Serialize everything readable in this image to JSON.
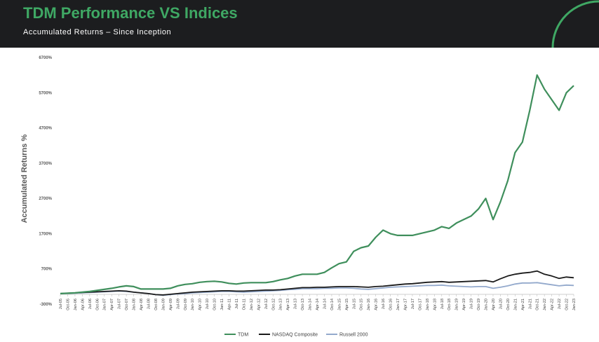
{
  "header": {
    "title": "TDM Performance VS Indices",
    "subtitle": "Accumulated Returns – Since Inception",
    "title_color": "#3fa864",
    "background": "#1c1d1f"
  },
  "chart_data": {
    "type": "line",
    "title": "TDM Performance VS Indices",
    "subtitle": "Accumulated Returns – Since Inception",
    "xlabel": "",
    "ylabel": "Accumulated Returns %",
    "ylim": [
      -300,
      6700
    ],
    "yticks": [
      -300,
      700,
      1700,
      2700,
      3700,
      4700,
      5700,
      6700
    ],
    "ytick_labels": [
      "-300%",
      "700%",
      "1700%",
      "2700%",
      "3700%",
      "4700%",
      "5700%",
      "6700%"
    ],
    "grid": false,
    "legend_position": "bottom",
    "categories": [
      "Jul-05",
      "Oct-05",
      "Jan-06",
      "Apr-06",
      "Jul-06",
      "Oct-06",
      "Jan-07",
      "Apr-07",
      "Jul-07",
      "Oct-07",
      "Jan-08",
      "Apr-08",
      "Jul-08",
      "Oct-08",
      "Jan-09",
      "Apr-09",
      "Jul-09",
      "Oct-09",
      "Jan-10",
      "Apr-10",
      "Jul-10",
      "Oct-10",
      "Jan-11",
      "Apr-11",
      "Jul-11",
      "Oct-11",
      "Jan-12",
      "Apr-12",
      "Jul-12",
      "Oct-12",
      "Jan-13",
      "Apr-13",
      "Jul-13",
      "Oct-13",
      "Jan-14",
      "Apr-14",
      "Jul-14",
      "Oct-14",
      "Jan-15",
      "Apr-15",
      "Jul-15",
      "Oct-15",
      "Jan-16",
      "Apr-16",
      "Jul-16",
      "Oct-16",
      "Jan-17",
      "Apr-17",
      "Jul-17",
      "Oct-17",
      "Jan-18",
      "Apr-18",
      "Jul-18",
      "Oct-18",
      "Jan-19",
      "Apr-19",
      "Jul-19",
      "Oct-19",
      "Jan-20",
      "Apr-20",
      "Jul-20",
      "Oct-20",
      "Jan-21",
      "Apr-21",
      "Jul-21",
      "Oct-21",
      "Jan-22",
      "Apr-22",
      "Jul-22",
      "Oct-22",
      "Jan-23"
    ],
    "series": [
      {
        "name": "TDM",
        "color": "#3f8f5c",
        "values": [
          0,
          10,
          20,
          40,
          60,
          90,
          120,
          150,
          190,
          220,
          200,
          130,
          130,
          130,
          130,
          150,
          220,
          260,
          280,
          320,
          340,
          350,
          330,
          290,
          270,
          300,
          310,
          310,
          310,
          340,
          390,
          430,
          500,
          550,
          550,
          550,
          600,
          730,
          850,
          900,
          1200,
          1300,
          1350,
          1600,
          1800,
          1700,
          1650,
          1650,
          1650,
          1700,
          1750,
          1800,
          1900,
          1850,
          2000,
          2100,
          2200,
          2400,
          2700,
          2100,
          2600,
          3200,
          4000,
          4300,
          5200,
          6200,
          5800,
          5500,
          5200,
          5700,
          5900
        ]
      },
      {
        "name": "NASDAQ Composite",
        "color": "#1a1a1a",
        "values": [
          0,
          10,
          20,
          30,
          40,
          50,
          60,
          70,
          80,
          70,
          40,
          20,
          0,
          -30,
          -40,
          -20,
          0,
          20,
          40,
          50,
          60,
          70,
          80,
          80,
          70,
          70,
          80,
          90,
          100,
          100,
          110,
          130,
          150,
          170,
          170,
          180,
          180,
          190,
          200,
          200,
          200,
          190,
          180,
          200,
          210,
          230,
          250,
          270,
          280,
          300,
          320,
          330,
          340,
          320,
          330,
          340,
          350,
          360,
          370,
          330,
          420,
          500,
          550,
          580,
          600,
          640,
          550,
          500,
          430,
          470,
          450
        ]
      },
      {
        "name": "Russell 2000",
        "color": "#93a9cc",
        "values": [
          0,
          5,
          10,
          20,
          30,
          40,
          50,
          60,
          70,
          60,
          40,
          20,
          0,
          -30,
          -50,
          -30,
          -10,
          0,
          20,
          30,
          40,
          50,
          60,
          60,
          50,
          40,
          50,
          60,
          70,
          80,
          90,
          110,
          120,
          140,
          140,
          140,
          150,
          150,
          160,
          160,
          150,
          130,
          120,
          140,
          160,
          180,
          190,
          200,
          210,
          220,
          230,
          230,
          240,
          220,
          210,
          200,
          190,
          200,
          200,
          150,
          180,
          220,
          270,
          300,
          300,
          310,
          280,
          250,
          220,
          240,
          230
        ]
      }
    ]
  }
}
